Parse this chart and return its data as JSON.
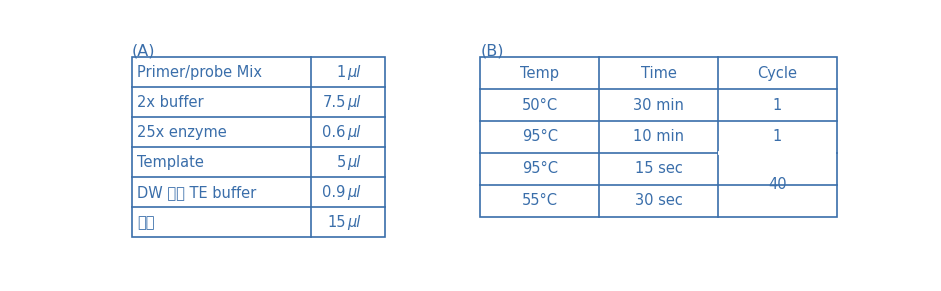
{
  "title_A": "(A)",
  "title_B": "(B)",
  "table_A_rows": [
    [
      "Primer/probe Mix",
      "1",
      "μl"
    ],
    [
      "2x buffer",
      "7.5",
      "μl"
    ],
    [
      "25x enzyme",
      "0.6",
      "μl"
    ],
    [
      "Template",
      "5",
      "μl"
    ],
    [
      "DW 또는 TE buffer",
      "0.9",
      "μl"
    ],
    [
      "합계",
      "15",
      "μl"
    ]
  ],
  "table_B_headers": [
    "Temp",
    "Time",
    "Cycle"
  ],
  "table_B_rows": [
    [
      "50°C",
      "30 min",
      "1"
    ],
    [
      "95°C",
      "10 min",
      "1"
    ],
    [
      "95°C",
      "15 sec",
      ""
    ],
    [
      "55°C",
      "30 sec",
      ""
    ]
  ],
  "table_B_cycle_merged": "40",
  "text_color": "#3a6eaa",
  "border_color": "#3a6eaa",
  "bg_color": "#ffffff",
  "fontsize": 10.5,
  "title_fontsize": 11.5
}
